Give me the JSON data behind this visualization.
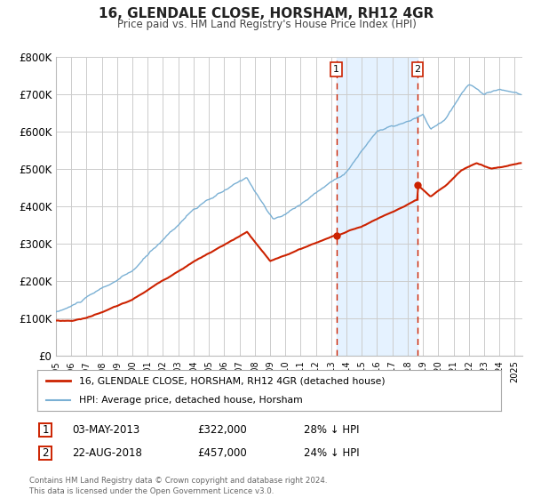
{
  "title": "16, GLENDALE CLOSE, HORSHAM, RH12 4GR",
  "subtitle": "Price paid vs. HM Land Registry's House Price Index (HPI)",
  "hpi_color": "#7ab0d4",
  "price_color": "#cc2200",
  "marker_color": "#cc2200",
  "background_color": "#ffffff",
  "plot_bg_color": "#ffffff",
  "grid_color": "#cccccc",
  "shade_color": "#ddeeff",
  "ylim": [
    0,
    800000
  ],
  "yticks": [
    0,
    100000,
    200000,
    300000,
    400000,
    500000,
    600000,
    700000,
    800000
  ],
  "ytick_labels": [
    "£0",
    "£100K",
    "£200K",
    "£300K",
    "£400K",
    "£500K",
    "£600K",
    "£700K",
    "£800K"
  ],
  "xlim_start": 1995.0,
  "xlim_end": 2025.5,
  "transaction1_date": 2013.34,
  "transaction1_price": 322000,
  "transaction1_label": "1",
  "transaction1_text": "03-MAY-2013",
  "transaction1_amount": "£322,000",
  "transaction1_pct": "28% ↓ HPI",
  "transaction2_date": 2018.64,
  "transaction2_price": 457000,
  "transaction2_label": "2",
  "transaction2_text": "22-AUG-2018",
  "transaction2_amount": "£457,000",
  "transaction2_pct": "24% ↓ HPI",
  "legend_line1": "16, GLENDALE CLOSE, HORSHAM, RH12 4GR (detached house)",
  "legend_line2": "HPI: Average price, detached house, Horsham",
  "footer": "Contains HM Land Registry data © Crown copyright and database right 2024.\nThis data is licensed under the Open Government Licence v3.0."
}
